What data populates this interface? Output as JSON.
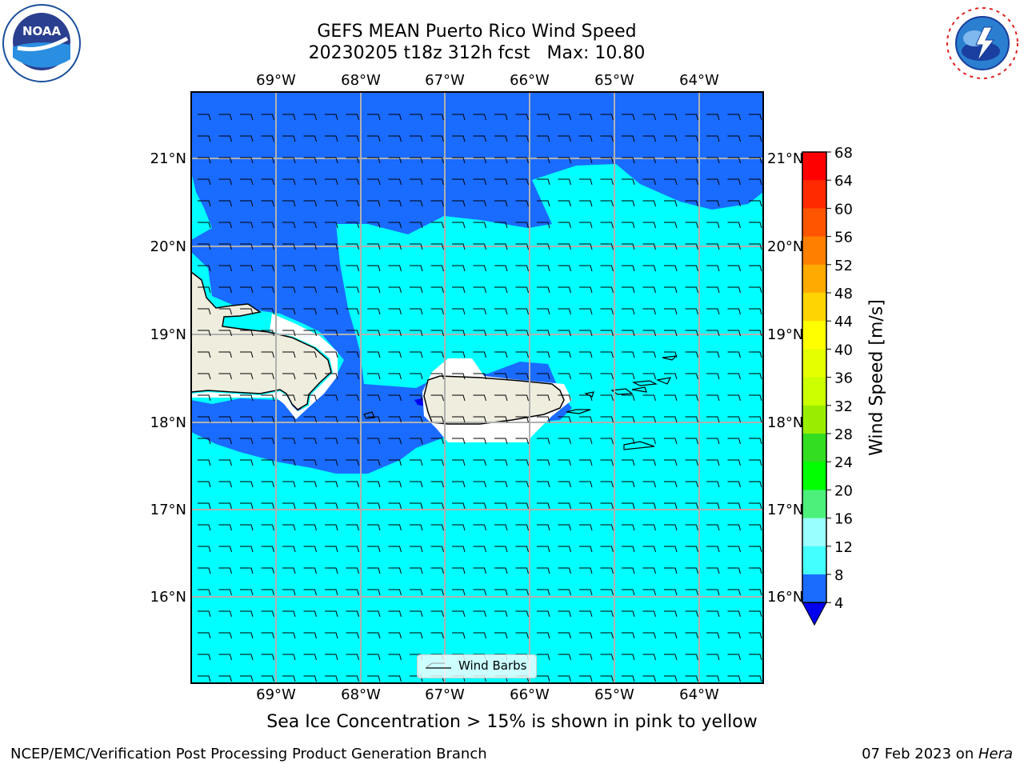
{
  "title": {
    "line1": "GEFS MEAN Puerto Rico Wind Speed",
    "line2": "20230205 t18z 312h fcst   Max: 10.80"
  },
  "logos": {
    "left": "NOAA",
    "right": "NATIONAL WEATHER SERVICE"
  },
  "map": {
    "lon_labels": [
      "69°W",
      "68°W",
      "67°W",
      "66°W",
      "65°W",
      "64°W"
    ],
    "lat_labels": [
      "21°N",
      "20°N",
      "19°N",
      "18°N",
      "17°N",
      "16°N"
    ],
    "lon_range": [
      -70.0,
      -63.25
    ],
    "lat_range": [
      15.05,
      21.75
    ],
    "legend_label": "Wind Barbs",
    "colors": {
      "fill_4_8": "#1a6bff",
      "fill_8_12": "#00ffff",
      "land": "#efedde",
      "grid": "#b0b0b0"
    }
  },
  "colorbar": {
    "label": "Wind Speed [m/s]",
    "ticks": [
      "68",
      "64",
      "60",
      "56",
      "52",
      "48",
      "44",
      "40",
      "36",
      "32",
      "28",
      "24",
      "20",
      "16",
      "12",
      "8",
      "4"
    ],
    "colors": [
      "#ff0000",
      "#ff2a00",
      "#ff5500",
      "#ff8000",
      "#ffaa00",
      "#ffd400",
      "#ffff00",
      "#e5ff00",
      "#ccff00",
      "#99ee00",
      "#33dd22",
      "#00ff00",
      "#4cf07a",
      "#99ffff",
      "#44ffff",
      "#00ffff",
      "#1a6bff"
    ],
    "under_color": "#0000ee"
  },
  "caption": "Sea Ice Concentration > 15% is shown in pink to yellow",
  "footer": {
    "left": "NCEP/EMC/Verification Post Processing Product Generation Branch",
    "right_date": "07 Feb 2023 on ",
    "right_host": "Hera"
  }
}
